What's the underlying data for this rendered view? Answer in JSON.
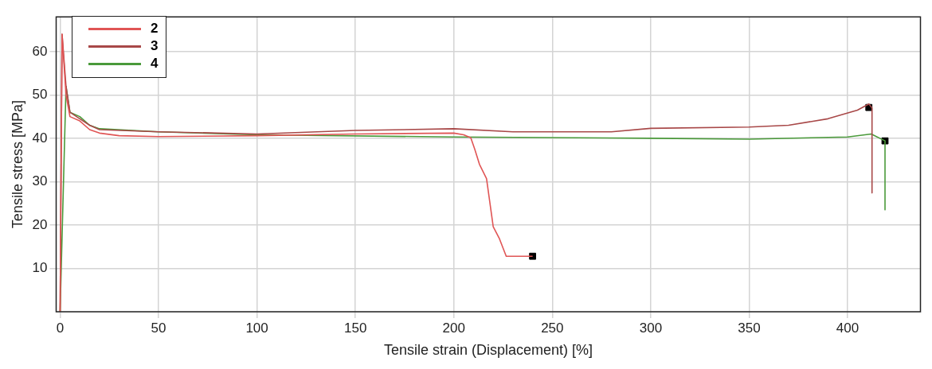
{
  "chart_data": {
    "type": "line",
    "xlabel": "Tensile strain (Displacement) [%]",
    "ylabel": "Tensile stress [MPa]",
    "xlim": [
      -2,
      437
    ],
    "ylim": [
      0,
      68
    ],
    "xticks": [
      0,
      50,
      100,
      150,
      200,
      250,
      300,
      350,
      400
    ],
    "yticks": [
      10,
      20,
      30,
      40,
      50,
      60
    ],
    "grid": true,
    "legend": "top left",
    "marker": "none",
    "series": [
      {
        "name": "2",
        "color": "#e05555",
        "x": [
          0,
          1,
          3,
          5,
          10,
          15,
          20,
          30,
          50,
          100,
          150,
          200,
          205,
          208.6,
          210.6,
          213,
          216.6,
          220,
          223,
          226.6,
          240
        ],
        "values": [
          0,
          64,
          50,
          45,
          44,
          42,
          41.2,
          40.6,
          40.4,
          40.6,
          41,
          41.2,
          40.8,
          40.1,
          37.5,
          34,
          30.7,
          19.6,
          17,
          12.8,
          12.8
        ]
      },
      {
        "name": "3",
        "color": "#a84848",
        "x": [
          0,
          1,
          3,
          5,
          10,
          15,
          20,
          50,
          100,
          150,
          200,
          230,
          280,
          300,
          350,
          370,
          390,
          405,
          410.8,
          412.4,
          412.4
        ],
        "values": [
          0,
          64,
          52,
          46,
          44.5,
          43,
          42,
          41.5,
          41,
          41.8,
          42.2,
          41.5,
          41.5,
          42.3,
          42.6,
          43,
          44.5,
          46.5,
          47.9,
          47,
          27.4
        ]
      },
      {
        "name": "4",
        "color": "#4a9a3a",
        "x": [
          0,
          3,
          5,
          10,
          15,
          20,
          50,
          100,
          200,
          300,
          350,
          400,
          412,
          419,
          419
        ],
        "values": [
          0,
          52,
          46,
          45,
          43,
          42.2,
          41.5,
          40.8,
          40.3,
          40,
          39.8,
          40.3,
          41,
          39.4,
          23.5
        ]
      },
      {
        "type": "scatter",
        "marker": "square",
        "color": "#000000",
        "x": [
          240,
          410.8,
          419
        ],
        "values": [
          12.8,
          47.1,
          39.4
        ]
      }
    ]
  }
}
